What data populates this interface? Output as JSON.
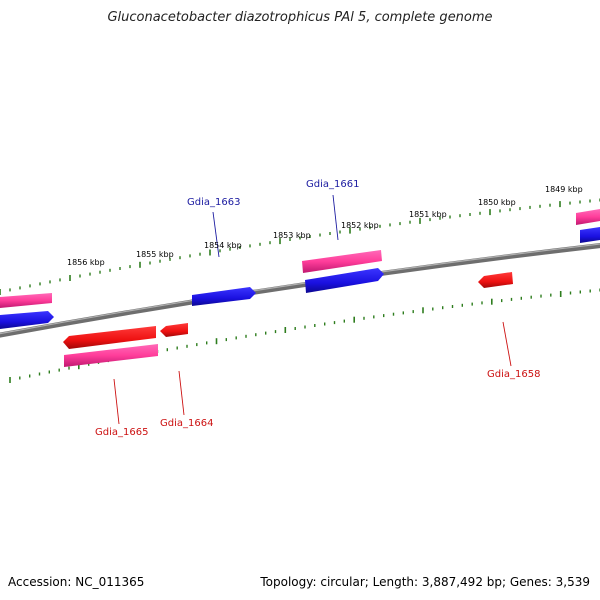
{
  "title": "Gluconacetobacter diazotrophicus PAl 5, complete genome",
  "footer": {
    "accession": "Accession: NC_011365",
    "summary": "Topology: circular; Length: 3,887,492 bp; Genes: 3,539"
  },
  "colors": {
    "backbone": "#888888",
    "tick": "#2e7d1e",
    "forward_cds": "#1a10e0",
    "reverse_cds": "#ee1111",
    "gene_pink": "#ff3d9a",
    "label_forward": "#1a1aa0",
    "label_reverse": "#cc1111"
  },
  "scale": {
    "unit": "kbp",
    "labels": [
      "1849 kbp",
      "1850 kbp",
      "1851 kbp",
      "1852 kbp",
      "1853 kbp",
      "1854 kbp",
      "1855 kbp",
      "1856 kbp"
    ]
  },
  "gene_labels": [
    {
      "name": "Gdia_1663",
      "strand": "forward"
    },
    {
      "name": "Gdia_1661",
      "strand": "forward"
    },
    {
      "name": "Gdia_1665",
      "strand": "reverse"
    },
    {
      "name": "Gdia_1664",
      "strand": "reverse"
    },
    {
      "name": "Gdia_1658",
      "strand": "reverse"
    }
  ]
}
